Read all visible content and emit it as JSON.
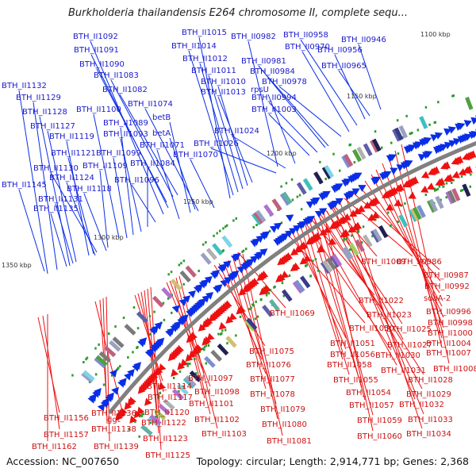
{
  "title": "Burkholderia thailandensis E264 chromosome II, complete sequ...",
  "accession": "Accession: NC_007650",
  "summary": "Topology: circular; Length: 2,914,771 bp; Genes: 2,368",
  "colors": {
    "forward": "#0a2ee6",
    "reverse": "#ee1111",
    "label_forward": "#1a1acc",
    "label_reverse": "#cc1111",
    "backbone": "#808080",
    "marker": "#2e9b2e"
  },
  "kbp_ticks": [
    "1100 kbp",
    "1150 kbp",
    "1200 kbp",
    "1250 kbp",
    "1300 kbp",
    "1350 kbp"
  ],
  "upper_labels": [
    "BTH_II1092",
    "BTH_II1091",
    "BTH_II1090",
    "BTH_II1083",
    "BTH_II1082",
    "BTH_II1132",
    "BTH_II1129",
    "BTH_II1128",
    "BTH_II1127",
    "BTH_II1119",
    "BTH_II1100",
    "BTH_II1089",
    "BTH_II1093",
    "BTH_II1121",
    "BTH_II1099",
    "BTH_II1130",
    "BTH_II1109",
    "BTH_II1124",
    "BTH_II1118",
    "BTH_II1145",
    "BTH_II1131",
    "BTH_II1135",
    "BTH_II1096",
    "BTH_II1084",
    "BTH_II1074",
    "betB",
    "betA",
    "BTH_II1071",
    "BTH_II1070",
    "BTH_II1015",
    "BTH_II1014",
    "BTH_II1012",
    "BTH_II1011",
    "BTH_II1010",
    "BTH_II1013",
    "BTH_II1026",
    "BTH_II1024",
    "rpsU",
    "BTH_II1003",
    "BTH_II0994",
    "BTH_II0982",
    "BTH_II0981",
    "BTH_II0984",
    "BTH_II0978",
    "BTH_II0970",
    "BTH_II0958",
    "BTH_II0956",
    "BTH_II0965",
    "BTH_II0946"
  ],
  "lower_labels": [
    "BTH_II1009",
    "BTH_II0986",
    "BTH_II0987",
    "BTH_II0992",
    "sdaA-2",
    "BTH_II0996",
    "BTH_II0998",
    "BTH_II1000",
    "BTH_II1004",
    "BTH_II1007",
    "BTH_II1008",
    "BTH_II1022",
    "BTH_II1023",
    "BTH_II1025",
    "BTH_II1027",
    "BTH_II1030",
    "BTH_II1031",
    "BTH_II1028",
    "BTH_II1029",
    "BTH_II1032",
    "BTH_II1033",
    "BTH_II1034",
    "BTH_II1050",
    "BTH_II1051",
    "BTH_II1056",
    "BTH_II1058",
    "BTH_II1055",
    "BTH_II1054",
    "BTH_II1057",
    "BTH_II1059",
    "BTH_II1060",
    "BTH_II1069",
    "BTH_II1075",
    "BTH_II1076",
    "BTH_II1077",
    "BTH_II1078",
    "BTH_II1079",
    "BTH_II1080",
    "BTH_II1081",
    "BTH_II1097",
    "BTH_II1098",
    "BTH_II1101",
    "BTH_II1102",
    "BTH_II1103",
    "BTH_II1114",
    "BTH_II1117",
    "BTH_II1120",
    "BTH_II1122",
    "BTH_II1123",
    "BTH_II1125",
    "ggt",
    "BTH_II1136",
    "BTH_II1138",
    "BTH_II1139",
    "BTH_II1156",
    "BTH_II1157",
    "BTH_II1162"
  ]
}
